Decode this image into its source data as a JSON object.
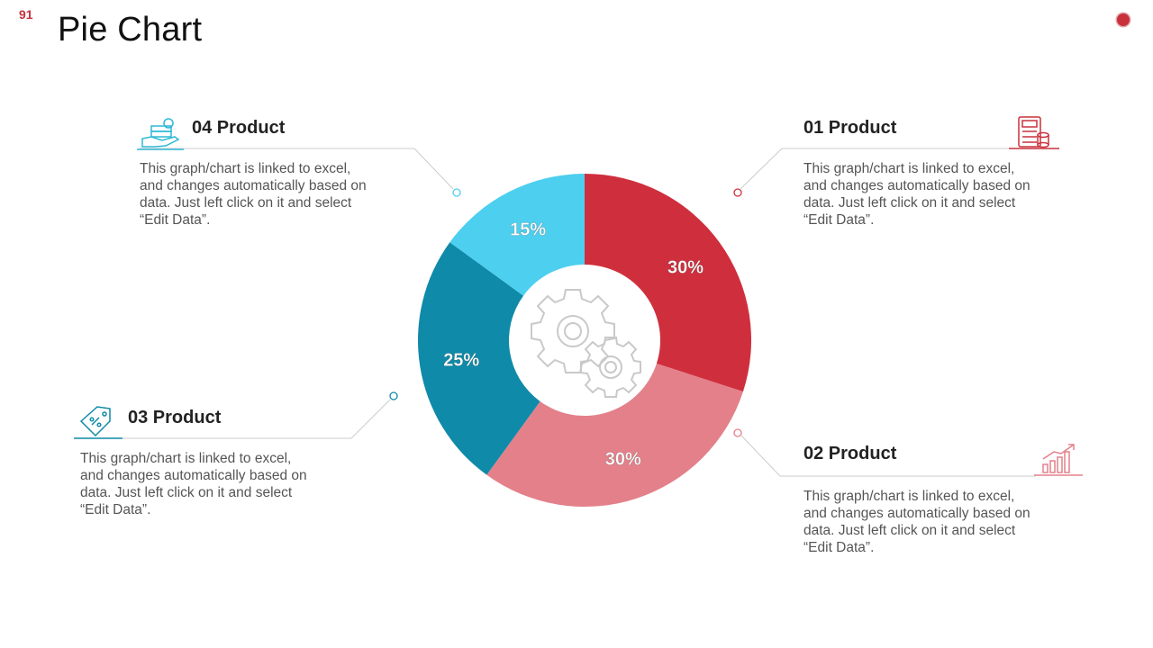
{
  "slide_number": "91",
  "page_title": "Pie Chart",
  "colors": {
    "red": "#cf2f3d",
    "pink": "#e3808a",
    "teal": "#0f8aa8",
    "sky": "#4dcfef",
    "accent": "#c8303c",
    "gear": "#c9c9c9"
  },
  "products": [
    {
      "heading": "01 Product",
      "text_lines": [
        "This graph/chart  is linked to excel,",
        "and changes automatically based on",
        "data. Just left click on it and select",
        "“Edit Data”."
      ],
      "icon": "calculator-coins-icon"
    },
    {
      "heading": "02 Product",
      "text_lines": [
        "This graph/chart  is linked to excel,",
        "and changes automatically based on",
        "data. Just left click on it and select",
        "“Edit Data”."
      ],
      "icon": "growth-chart-icon"
    },
    {
      "heading": "03 Product",
      "text_lines": [
        "This graph/chart  is linked to excel,",
        "and changes automatically based on",
        "data. Just left click on it and select",
        "“Edit Data”."
      ],
      "icon": "discount-tag-icon"
    },
    {
      "heading": "04 Product",
      "text_lines": [
        "This graph/chart  is linked to excel,",
        "and changes automatically based on",
        "data. Just left click on it and select",
        "“Edit Data”."
      ],
      "icon": "money-hand-icon"
    }
  ],
  "center_icon": "gears-icon",
  "chart_data": {
    "type": "pie",
    "donut": true,
    "slices": [
      {
        "label": "01 Product",
        "value": 30,
        "display": "30%",
        "color": "#cf2f3d"
      },
      {
        "label": "02 Product",
        "value": 30,
        "display": "30%",
        "color": "#e3808a"
      },
      {
        "label": "03 Product",
        "value": 25,
        "display": "25%",
        "color": "#0f8aa8"
      },
      {
        "label": "04 Product",
        "value": 15,
        "display": "15%",
        "color": "#4dcfef"
      }
    ],
    "title": "",
    "legend": "none"
  }
}
